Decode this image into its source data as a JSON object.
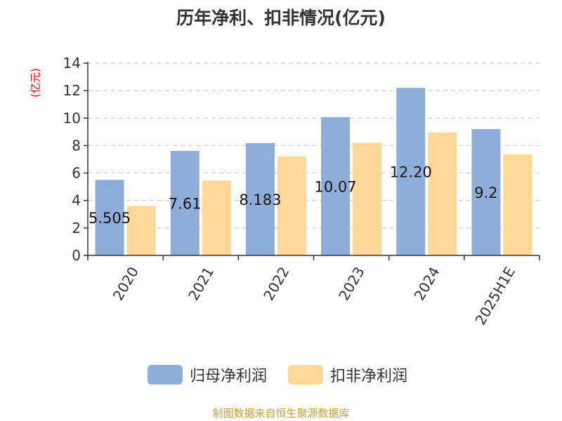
{
  "chart_data": {
    "type": "bar",
    "title": "历年净利、扣非情况(亿元)",
    "ylabel": "(亿元)",
    "xlabel": "",
    "categories": [
      "2020",
      "2021",
      "2022",
      "2023",
      "2024",
      "2025H1E"
    ],
    "ylim": [
      0,
      14
    ],
    "yticks": [
      0,
      2,
      4,
      6,
      8,
      10,
      12,
      14
    ],
    "grid": true,
    "legend_position": "bottom",
    "series": [
      {
        "name": "归母净利润",
        "color": "#8eadd9",
        "values": [
          5.505,
          7.61,
          8.183,
          10.07,
          12.2,
          9.2
        ],
        "labels": [
          "5.505",
          "7.61",
          "8.183",
          "10.07",
          "12.20",
          "9.2"
        ]
      },
      {
        "name": "扣非净利润",
        "color": "#ffd899",
        "values": [
          3.6,
          5.45,
          7.2,
          8.2,
          8.95,
          7.35
        ]
      }
    ]
  },
  "source": "制图数据来自恒生聚源数据库"
}
